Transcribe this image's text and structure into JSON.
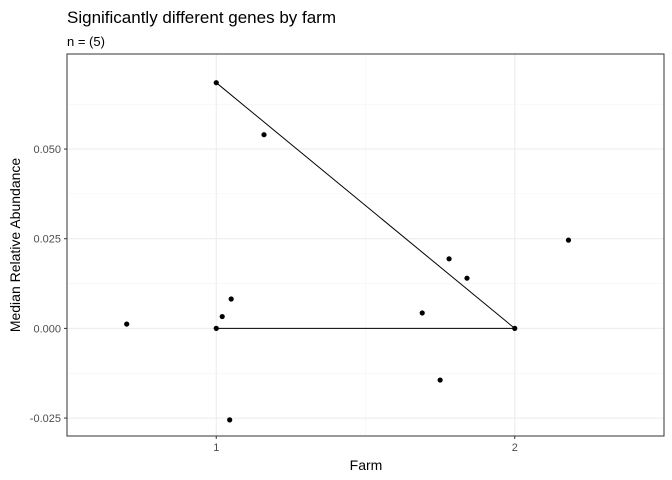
{
  "chart_data": {
    "type": "scatter",
    "title": "Significantly different genes by farm",
    "subtitle": "n = (5)",
    "xlabel": "Farm",
    "ylabel": "Median Relative Abundance",
    "xlim": [
      0.5,
      2.5
    ],
    "ylim": [
      -0.03,
      0.0765
    ],
    "x_ticks": [
      {
        "value": 1,
        "label": "1"
      },
      {
        "value": 2,
        "label": "2"
      }
    ],
    "y_ticks": [
      {
        "value": -0.025,
        "label": "-0.025"
      },
      {
        "value": 0.0,
        "label": "0.000"
      },
      {
        "value": 0.025,
        "label": "0.025"
      },
      {
        "value": 0.05,
        "label": "0.050"
      }
    ],
    "grid": true,
    "points": [
      {
        "x": 1.0,
        "y": 0.0685
      },
      {
        "x": 1.16,
        "y": 0.054
      },
      {
        "x": 0.7,
        "y": 0.0012
      },
      {
        "x": 1.0,
        "y": 0.0
      },
      {
        "x": 1.02,
        "y": 0.0033
      },
      {
        "x": 1.05,
        "y": 0.0082
      },
      {
        "x": 1.045,
        "y": -0.0255
      },
      {
        "x": 1.69,
        "y": 0.0043
      },
      {
        "x": 1.78,
        "y": 0.0194
      },
      {
        "x": 1.84,
        "y": 0.014
      },
      {
        "x": 1.75,
        "y": -0.0144
      },
      {
        "x": 2.0,
        "y": 0.0
      },
      {
        "x": 2.18,
        "y": 0.0246
      }
    ],
    "segments": [
      {
        "x1": 1.0,
        "y1": 0.0685,
        "x2": 2.0,
        "y2": 0.0
      },
      {
        "x1": 1.0,
        "y1": 0.0,
        "x2": 2.0,
        "y2": 0.0
      }
    ]
  }
}
